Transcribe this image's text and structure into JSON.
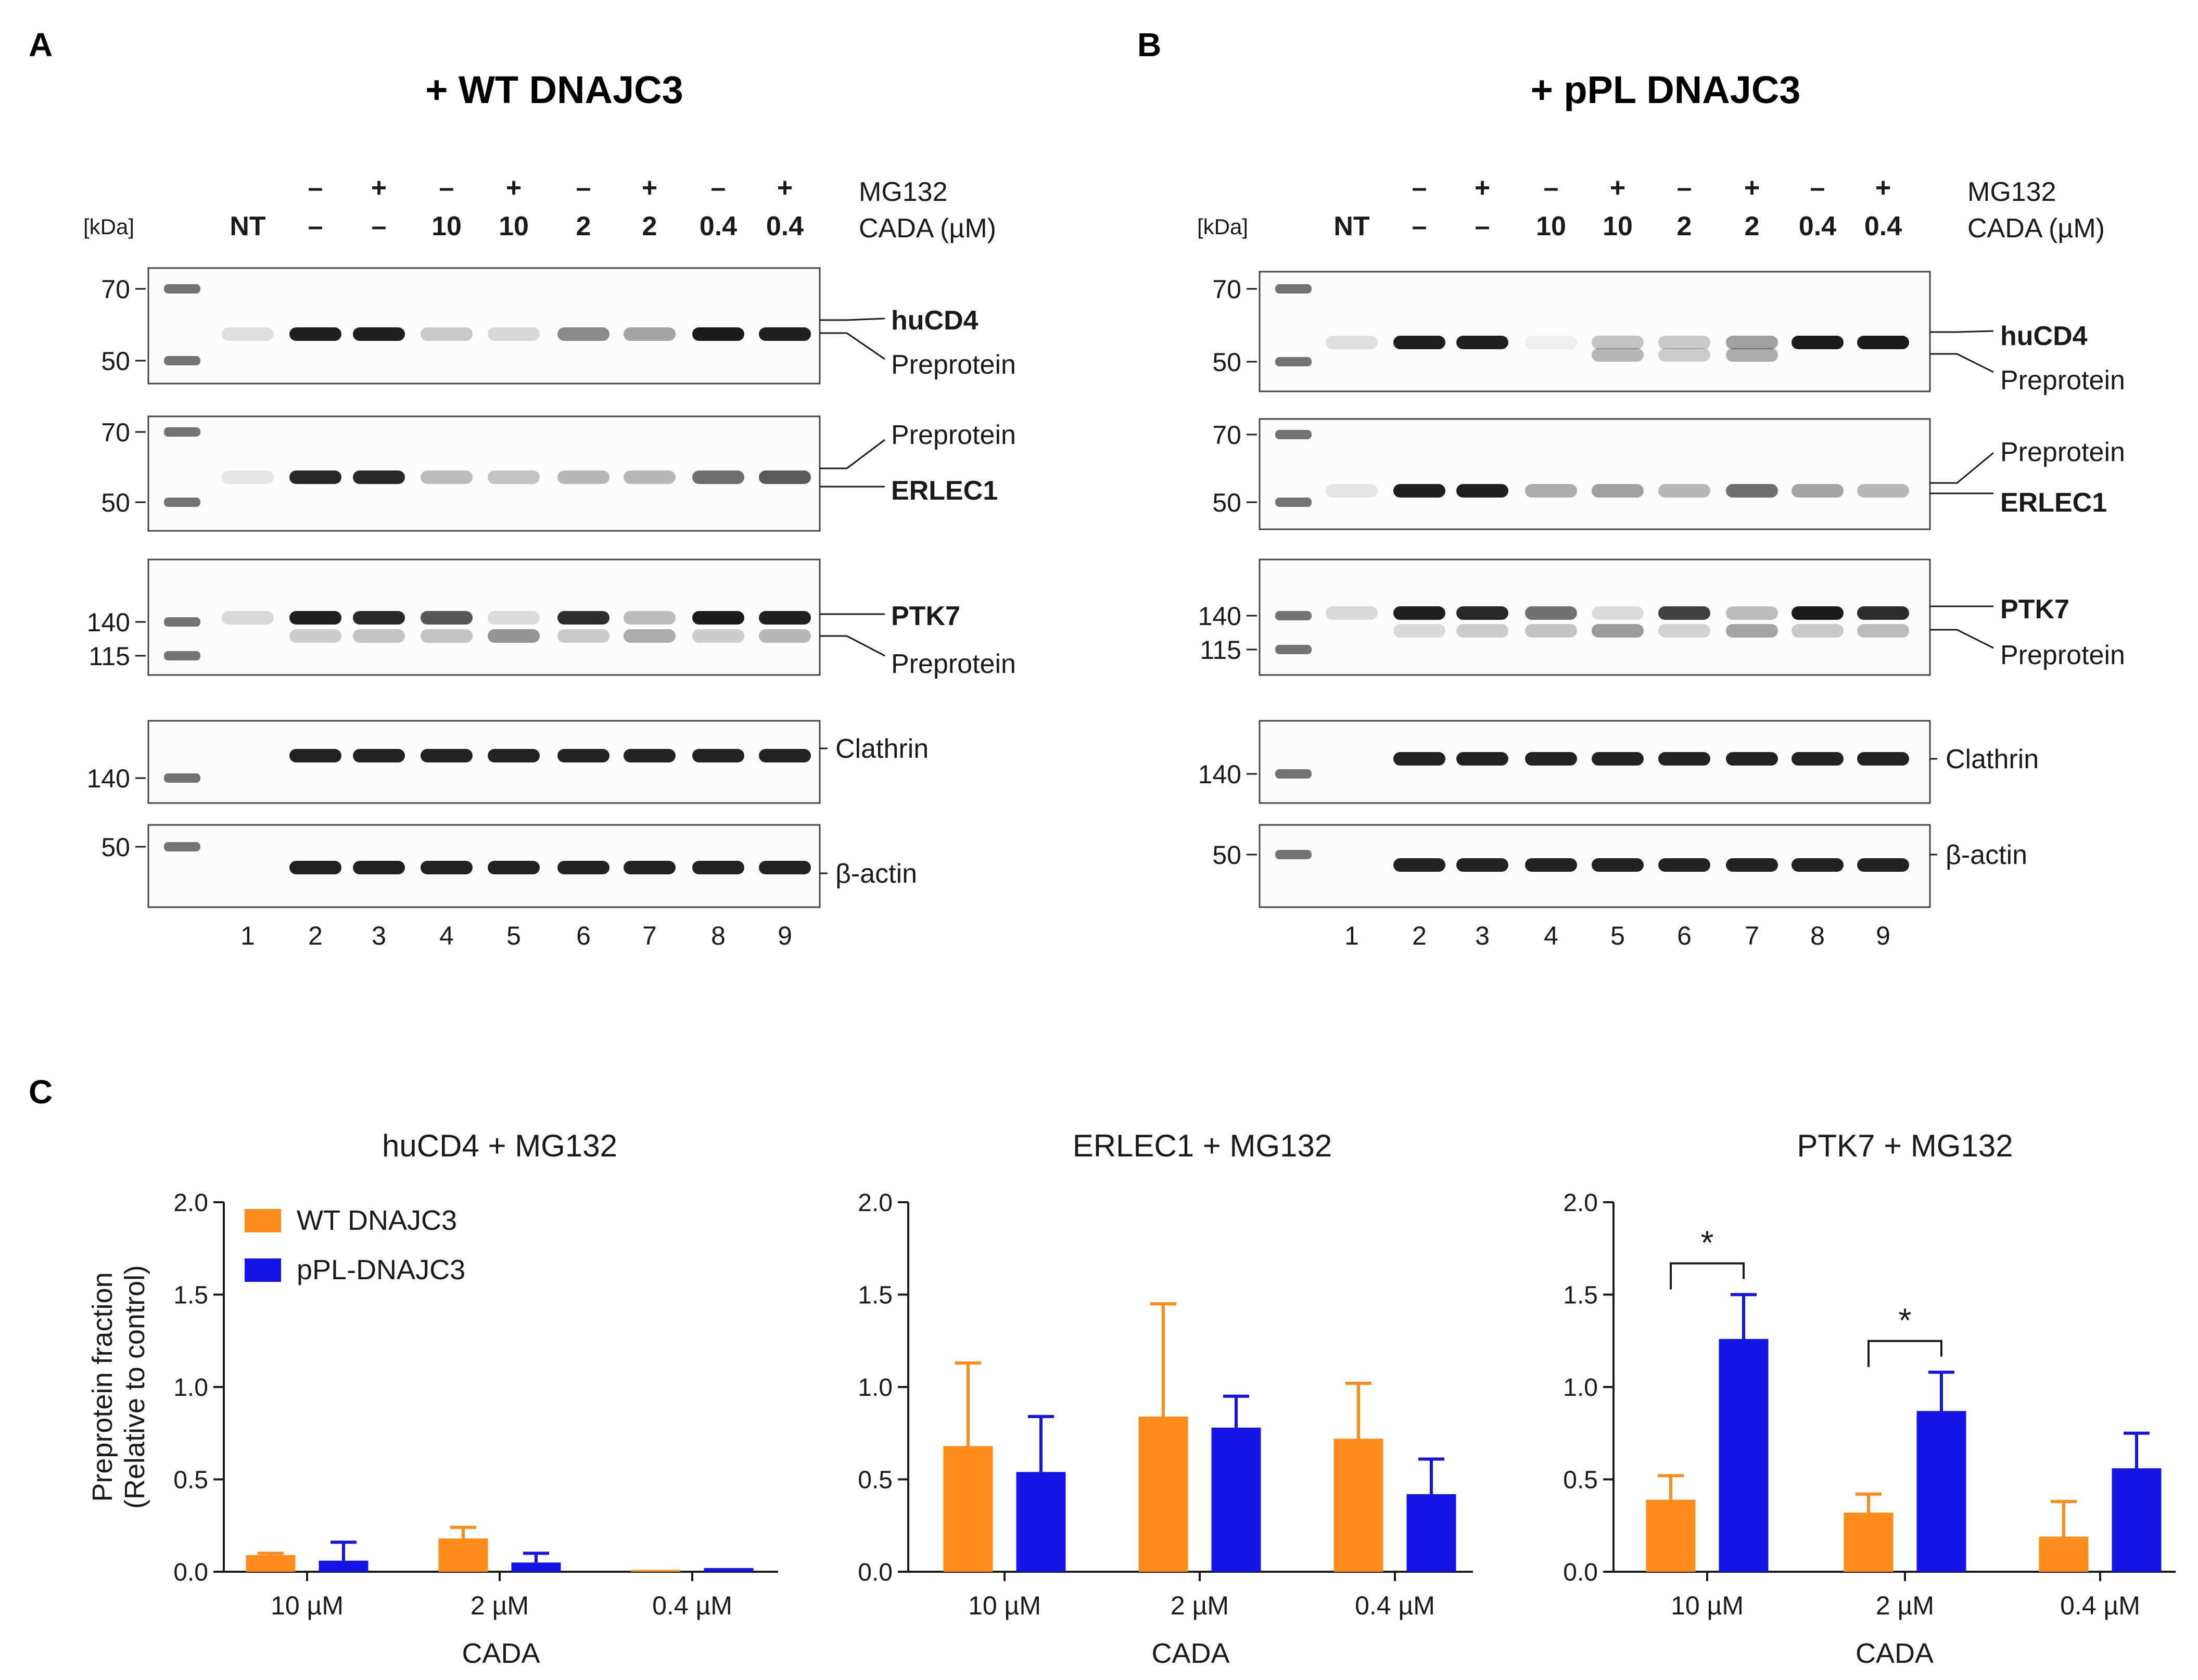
{
  "panels": {
    "a": {
      "letter": "A",
      "title": "+ WT DNAJC3",
      "kda_label": "[kDa]",
      "mg132_label": "MG132",
      "cada_label": "CADA (µM)",
      "mg132_row": [
        "",
        "–",
        "+",
        "–",
        "+",
        "–",
        "+",
        "–",
        "+"
      ],
      "cada_row": [
        "NT",
        "–",
        "–",
        "10",
        "10",
        "2",
        "2",
        "0.4",
        "0.4"
      ],
      "lanes": [
        "1",
        "2",
        "3",
        "4",
        "5",
        "6",
        "7",
        "8",
        "9"
      ],
      "blots": [
        {
          "markers": [
            "70",
            "50"
          ],
          "labels": [
            "huCD4",
            "Preprotein"
          ]
        },
        {
          "markers": [
            "70",
            "50"
          ],
          "labels": [
            "Preprotein",
            "ERLEC1"
          ]
        },
        {
          "markers": [
            "140",
            "115"
          ],
          "labels": [
            "PTK7",
            "Preprotein"
          ]
        },
        {
          "markers": [
            "140"
          ],
          "labels": [
            "Clathrin"
          ]
        },
        {
          "markers": [
            "50"
          ],
          "labels": [
            "β-actin"
          ]
        }
      ]
    },
    "b": {
      "letter": "B",
      "title": "+ pPL DNAJC3",
      "kda_label": "[kDa]",
      "mg132_label": "MG132",
      "cada_label": "CADA (µM)",
      "mg132_row": [
        "",
        "–",
        "+",
        "–",
        "+",
        "–",
        "+",
        "–",
        "+"
      ],
      "cada_row": [
        "NT",
        "–",
        "–",
        "10",
        "10",
        "2",
        "2",
        "0.4",
        "0.4"
      ],
      "lanes": [
        "1",
        "2",
        "3",
        "4",
        "5",
        "6",
        "7",
        "8",
        "9"
      ],
      "blots": [
        {
          "markers": [
            "70",
            "50"
          ],
          "labels": [
            "huCD4",
            "Preprotein"
          ]
        },
        {
          "markers": [
            "70",
            "50"
          ],
          "labels": [
            "Preprotein",
            "ERLEC1"
          ]
        },
        {
          "markers": [
            "140",
            "115"
          ],
          "labels": [
            "PTK7",
            "Preprotein"
          ]
        },
        {
          "markers": [
            "140"
          ],
          "labels": [
            "Clathrin"
          ]
        },
        {
          "markers": [
            "50"
          ],
          "labels": [
            "β-actin"
          ]
        }
      ]
    },
    "c": {
      "letter": "C"
    }
  },
  "colors": {
    "wt": "#ff8c1a",
    "ppl": "#1414e6",
    "band": "#161616",
    "ink": "#1a1a1a"
  },
  "chart_data": [
    {
      "type": "bar",
      "title": "huCD4 + MG132",
      "categories": [
        "10 µM",
        "2 µM",
        "0.4 µM"
      ],
      "xlabel": "CADA",
      "ylabel": "Preprotein fraction (Relative to control)",
      "ylim": [
        0,
        2
      ],
      "yticks": [
        "0.0",
        "0.5",
        "1.0",
        "1.5",
        "2.0"
      ],
      "legend": [
        "WT DNAJC3",
        "pPL-DNAJC3"
      ],
      "legend_position": "top-left",
      "series": [
        {
          "name": "WT DNAJC3",
          "values": [
            0.09,
            0.18,
            0.01
          ],
          "errors": [
            0.01,
            0.06,
            0.0
          ]
        },
        {
          "name": "pPL-DNAJC3",
          "values": [
            0.06,
            0.05,
            0.02
          ],
          "errors": [
            0.1,
            0.05,
            0.0
          ]
        }
      ],
      "significance": []
    },
    {
      "type": "bar",
      "title": "ERLEC1 + MG132",
      "categories": [
        "10 µM",
        "2 µM",
        "0.4 µM"
      ],
      "xlabel": "CADA",
      "ylabel": "",
      "ylim": [
        0,
        2
      ],
      "yticks": [
        "0.0",
        "0.5",
        "1.0",
        "1.5",
        "2.0"
      ],
      "series": [
        {
          "name": "WT DNAJC3",
          "values": [
            0.68,
            0.84,
            0.72
          ],
          "errors": [
            0.45,
            0.61,
            0.3
          ]
        },
        {
          "name": "pPL-DNAJC3",
          "values": [
            0.54,
            0.78,
            0.42
          ],
          "errors": [
            0.3,
            0.17,
            0.19
          ]
        }
      ],
      "significance": []
    },
    {
      "type": "bar",
      "title": "PTK7 + MG132",
      "categories": [
        "10 µM",
        "2 µM",
        "0.4 µM"
      ],
      "xlabel": "CADA",
      "ylabel": "",
      "ylim": [
        0,
        2
      ],
      "yticks": [
        "0.0",
        "0.5",
        "1.0",
        "1.5",
        "2.0"
      ],
      "series": [
        {
          "name": "WT DNAJC3",
          "values": [
            0.39,
            0.32,
            0.19
          ],
          "errors": [
            0.13,
            0.1,
            0.19
          ]
        },
        {
          "name": "pPL-DNAJC3",
          "values": [
            1.26,
            0.87,
            0.56
          ],
          "errors": [
            0.24,
            0.21,
            0.19
          ]
        }
      ],
      "significance": [
        {
          "category": 0,
          "label": "*"
        },
        {
          "category": 1,
          "label": "*"
        }
      ]
    }
  ]
}
